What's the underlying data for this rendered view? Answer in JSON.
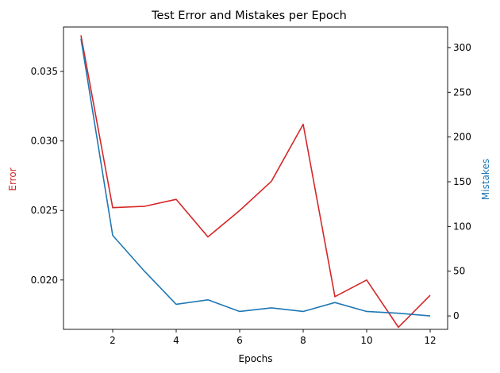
{
  "chart_data": {
    "type": "line",
    "title": "Test Error and Mistakes per Epoch",
    "xlabel": "Epochs",
    "x": [
      1,
      2,
      3,
      4,
      5,
      6,
      7,
      8,
      9,
      10,
      11,
      12
    ],
    "xticks": [
      2,
      4,
      6,
      8,
      10,
      12
    ],
    "xlim": [
      0.45,
      12.55
    ],
    "y_left": {
      "label": "Error",
      "color": "#d62728",
      "lim": [
        0.01645,
        0.0382
      ],
      "ticks": [
        0.02,
        0.025,
        0.03,
        0.035
      ],
      "tick_labels": [
        "0.020",
        "0.025",
        "0.030",
        "0.035"
      ]
    },
    "y_right": {
      "label": "Mistakes",
      "color": "#1f77b4",
      "lim": [
        -15,
        323
      ],
      "ticks": [
        0,
        50,
        100,
        150,
        200,
        250,
        300
      ],
      "tick_labels": [
        "0",
        "50",
        "100",
        "150",
        "200",
        "250",
        "300"
      ]
    },
    "series": [
      {
        "axis": "left",
        "color": "#d62728",
        "values": [
          0.0376,
          0.0252,
          0.0253,
          0.0258,
          0.0231,
          0.025,
          0.0271,
          0.0312,
          0.0188,
          0.02,
          0.0166,
          0.0189
        ]
      },
      {
        "axis": "right",
        "color": "#1f77b4",
        "values": [
          310,
          90,
          50,
          13,
          18,
          5,
          9,
          5,
          15,
          5,
          3,
          0
        ]
      }
    ],
    "grid": false,
    "legend": "none"
  }
}
